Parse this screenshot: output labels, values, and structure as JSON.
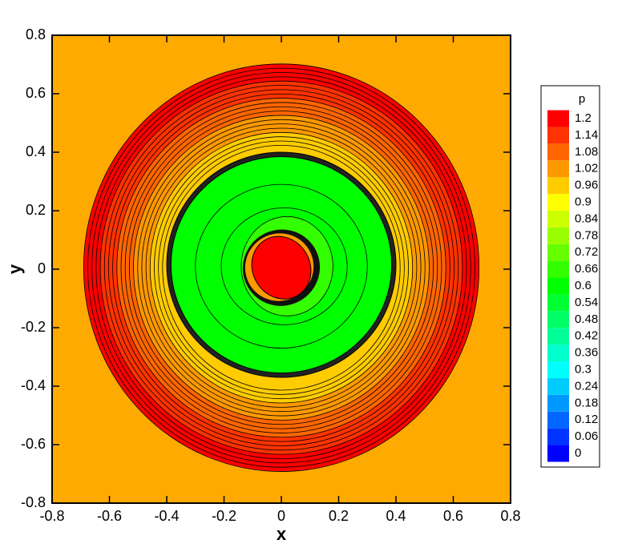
{
  "chart_data": {
    "type": "contour",
    "x_label": "x",
    "y_label": "y",
    "xlim": [
      -0.8,
      0.8
    ],
    "ylim": [
      -0.8,
      0.8
    ],
    "xticks": [
      -0.8,
      -0.6,
      -0.4,
      -0.2,
      0,
      0.2,
      0.4,
      0.6,
      0.8
    ],
    "yticks": [
      -0.8,
      -0.6,
      -0.4,
      -0.2,
      0,
      0.2,
      0.4,
      0.6,
      0.8
    ],
    "background_color": "#ffaa00",
    "colorbar": {
      "title": "p",
      "levels": [
        0,
        0.06,
        0.12,
        0.18,
        0.24,
        0.3,
        0.36,
        0.42,
        0.48,
        0.54,
        0.6,
        0.66,
        0.72,
        0.78,
        0.84,
        0.9,
        0.96,
        1.02,
        1.08,
        1.14,
        1.2
      ],
      "colors": [
        "#0000ff",
        "#0033ff",
        "#0066ff",
        "#0099ff",
        "#00ccff",
        "#00ffff",
        "#00ffcc",
        "#00ff99",
        "#00ff66",
        "#00ff33",
        "#00ff00",
        "#33ff00",
        "#66ff00",
        "#99ff00",
        "#ccff00",
        "#ffff00",
        "#ffcc00",
        "#ff9900",
        "#ff6600",
        "#ff3300",
        "#ff0000"
      ]
    }
  }
}
